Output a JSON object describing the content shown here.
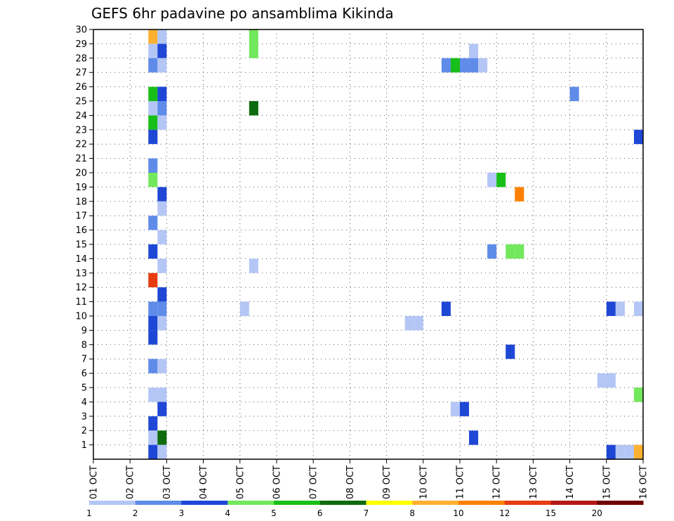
{
  "chart_data": {
    "type": "heatmap",
    "title": "GEFS 6hr padavine po ansamblima Kikinda",
    "xlabel": "",
    "ylabel": "",
    "x_tick_labels": [
      "01 OCT",
      "02 OCT",
      "03 OCT",
      "04 OCT",
      "05 OCT",
      "06 OCT",
      "07 OCT",
      "08 OCT",
      "09 OCT",
      "10 OCT",
      "11 OCT",
      "12 OCT",
      "13 OCT",
      "14 OCT",
      "15 OCT",
      "16 OCT"
    ],
    "xlim_days": [
      0,
      15
    ],
    "steps_per_day": 4,
    "y_tick_labels": [
      "1",
      "2",
      "3",
      "4",
      "5",
      "6",
      "7",
      "8",
      "9",
      "10",
      "11",
      "12",
      "13",
      "14",
      "15",
      "16",
      "17",
      "18",
      "19",
      "20",
      "21",
      "22",
      "23",
      "24",
      "25",
      "26",
      "27",
      "28",
      "29",
      "30"
    ],
    "ylim": [
      0,
      30
    ],
    "grid": true,
    "legend": {
      "placement": "bottom",
      "boundaries": [
        "1",
        "2",
        "3",
        "4",
        "5",
        "6",
        "7",
        "8",
        "10",
        "12",
        "15",
        "20"
      ],
      "colors": [
        "#b3c6f5",
        "#5f8ce8",
        "#1f47d6",
        "#72e85c",
        "#18bf18",
        "#0e6b0e",
        "#ffff00",
        "#ffb030",
        "#ff8000",
        "#e63c10",
        "#b41818",
        "#6e0000"
      ]
    },
    "cells": [
      {
        "member": 30,
        "step": 6,
        "value": 9
      },
      {
        "member": 30,
        "step": 7,
        "value": 1
      },
      {
        "member": 30,
        "step": 17,
        "value": 4.5
      },
      {
        "member": 29,
        "step": 6,
        "value": 1
      },
      {
        "member": 29,
        "step": 7,
        "value": 3
      },
      {
        "member": 29,
        "step": 17,
        "value": 4.5
      },
      {
        "member": 29,
        "step": 41,
        "value": 1
      },
      {
        "member": 28,
        "step": 6,
        "value": 2
      },
      {
        "member": 28,
        "step": 7,
        "value": 1
      },
      {
        "member": 28,
        "step": 38,
        "value": 2
      },
      {
        "member": 28,
        "step": 39,
        "value": 5
      },
      {
        "member": 28,
        "step": 40,
        "value": 2
      },
      {
        "member": 28,
        "step": 41,
        "value": 2
      },
      {
        "member": 28,
        "step": 42,
        "value": 1
      },
      {
        "member": 26,
        "step": 6,
        "value": 5
      },
      {
        "member": 26,
        "step": 7,
        "value": 3
      },
      {
        "member": 26,
        "step": 52,
        "value": 2
      },
      {
        "member": 25,
        "step": 6,
        "value": 1
      },
      {
        "member": 25,
        "step": 7,
        "value": 2
      },
      {
        "member": 25,
        "step": 17,
        "value": 6
      },
      {
        "member": 24,
        "step": 6,
        "value": 5
      },
      {
        "member": 24,
        "step": 7,
        "value": 1
      },
      {
        "member": 23,
        "step": 6,
        "value": 3
      },
      {
        "member": 23,
        "step": 59,
        "value": 3
      },
      {
        "member": 21,
        "step": 6,
        "value": 2
      },
      {
        "member": 20,
        "step": 6,
        "value": 4.5
      },
      {
        "member": 20,
        "step": 43,
        "value": 1
      },
      {
        "member": 20,
        "step": 44,
        "value": 5
      },
      {
        "member": 19,
        "step": 7,
        "value": 3
      },
      {
        "member": 19,
        "step": 46,
        "value": 11
      },
      {
        "member": 18,
        "step": 7,
        "value": 1
      },
      {
        "member": 17,
        "step": 6,
        "value": 2
      },
      {
        "member": 16,
        "step": 7,
        "value": 1
      },
      {
        "member": 15,
        "step": 6,
        "value": 3
      },
      {
        "member": 15,
        "step": 43,
        "value": 2
      },
      {
        "member": 15,
        "step": 45,
        "value": 4.5
      },
      {
        "member": 15,
        "step": 46,
        "value": 4.5
      },
      {
        "member": 14,
        "step": 7,
        "value": 1
      },
      {
        "member": 14,
        "step": 17,
        "value": 1
      },
      {
        "member": 13,
        "step": 6,
        "value": 14
      },
      {
        "member": 12,
        "step": 7,
        "value": 3
      },
      {
        "member": 11,
        "step": 6,
        "value": 2
      },
      {
        "member": 11,
        "step": 7,
        "value": 2
      },
      {
        "member": 11,
        "step": 16,
        "value": 1
      },
      {
        "member": 11,
        "step": 38,
        "value": 3
      },
      {
        "member": 11,
        "step": 56,
        "value": 3
      },
      {
        "member": 11,
        "step": 57,
        "value": 1
      },
      {
        "member": 11,
        "step": 59,
        "value": 1
      },
      {
        "member": 10,
        "step": 6,
        "value": 3
      },
      {
        "member": 10,
        "step": 7,
        "value": 1
      },
      {
        "member": 10,
        "step": 34,
        "value": 1
      },
      {
        "member": 10,
        "step": 35,
        "value": 1
      },
      {
        "member": 9,
        "step": 6,
        "value": 3
      },
      {
        "member": 8,
        "step": 45,
        "value": 3
      },
      {
        "member": 7,
        "step": 6,
        "value": 2
      },
      {
        "member": 7,
        "step": 7,
        "value": 1
      },
      {
        "member": 6,
        "step": 55,
        "value": 1
      },
      {
        "member": 6,
        "step": 56,
        "value": 1
      },
      {
        "member": 5,
        "step": 6,
        "value": 1
      },
      {
        "member": 5,
        "step": 7,
        "value": 1
      },
      {
        "member": 5,
        "step": 59,
        "value": 4.5
      },
      {
        "member": 4,
        "step": 7,
        "value": 3
      },
      {
        "member": 4,
        "step": 39,
        "value": 1
      },
      {
        "member": 4,
        "step": 40,
        "value": 3
      },
      {
        "member": 3,
        "step": 6,
        "value": 3
      },
      {
        "member": 2,
        "step": 6,
        "value": 1
      },
      {
        "member": 2,
        "step": 7,
        "value": 6
      },
      {
        "member": 2,
        "step": 41,
        "value": 3
      },
      {
        "member": 1,
        "step": 6,
        "value": 3
      },
      {
        "member": 1,
        "step": 7,
        "value": 1
      },
      {
        "member": 1,
        "step": 56,
        "value": 3
      },
      {
        "member": 1,
        "step": 57,
        "value": 1
      },
      {
        "member": 1,
        "step": 58,
        "value": 1
      },
      {
        "member": 1,
        "step": 59,
        "value": 9
      }
    ]
  }
}
